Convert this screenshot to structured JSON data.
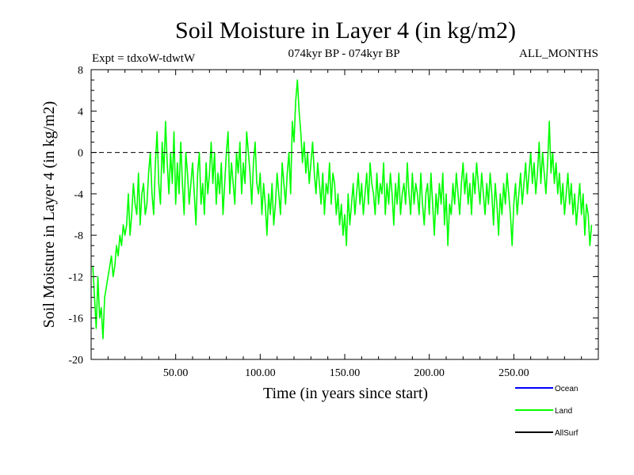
{
  "chart_data": {
    "type": "line",
    "title": "Soil Moisture in Layer 4 (in kg/m2)",
    "subtitle_left": "Expt = tdxoW-tdwtW",
    "subtitle_center": "074kyr BP - 074kyr BP",
    "subtitle_right": "ALL_MONTHS",
    "xlabel": "Time (in years since start)",
    "ylabel": "Soil Moisture in Layer 4 (in kg/m2)",
    "xlim": [
      0,
      300
    ],
    "ylim": [
      -20,
      8
    ],
    "x_ticks": [
      50,
      100,
      150,
      200,
      250
    ],
    "x_tick_labels": [
      "50.00",
      "100.00",
      "150.00",
      "200.00",
      "250.00"
    ],
    "y_ticks": [
      -20,
      -16,
      -12,
      -8,
      -4,
      0,
      4,
      8
    ],
    "y_tick_labels": [
      "-20",
      "-16",
      "-12",
      "-8",
      "-4",
      "0",
      "4",
      "8"
    ],
    "reference_line": {
      "y": 0,
      "style": "dashed"
    },
    "legend": [
      {
        "label": "Ocean",
        "color": "#0000ff"
      },
      {
        "label": "Land",
        "color": "#00ff00"
      },
      {
        "label": "AllSurf",
        "color": "#000000"
      }
    ],
    "series": [
      {
        "name": "Land",
        "color": "#00ff00",
        "x_start": 1,
        "x_step": 1,
        "values": [
          -11,
          -14,
          -17,
          -12,
          -16,
          -15,
          -18,
          -14,
          -13,
          -12,
          -11,
          -10,
          -12,
          -11,
          -9,
          -10,
          -8,
          -9,
          -7,
          -8,
          -7,
          -4,
          -8,
          -6,
          -3,
          -5,
          -6,
          -2,
          -7,
          -4,
          -3,
          -6,
          -5,
          -2,
          0,
          -4,
          -6,
          -1,
          2,
          -3,
          -5,
          1,
          -2,
          3,
          -1,
          -4,
          0,
          -3,
          2,
          -5,
          -1,
          -4,
          1,
          -3,
          -6,
          0,
          -2,
          -5,
          -3,
          -1,
          -4,
          -7,
          -2,
          0,
          -5,
          -3,
          -6,
          -1,
          -4,
          -2,
          1,
          -3,
          0,
          -5,
          -2,
          -4,
          -1,
          -6,
          -3,
          0,
          2,
          -4,
          -1,
          -3,
          -5,
          0,
          -2,
          1,
          -4,
          -1,
          -3,
          2,
          0,
          -2,
          -5,
          -1,
          1,
          -3,
          -4,
          -2,
          -6,
          -3,
          -5,
          -8,
          -4,
          -6,
          -3,
          -7,
          -5,
          -2,
          -4,
          -6,
          -1,
          -3,
          -5,
          -2,
          0,
          -4,
          3,
          1,
          5,
          7,
          4,
          2,
          -1,
          1,
          -2,
          0,
          -3,
          -1,
          1,
          -2,
          -4,
          -1,
          -3,
          -5,
          -2,
          -6,
          -3,
          -4,
          -1,
          -5,
          -2,
          -3,
          -6,
          -4,
          -7,
          -5,
          -8,
          -6,
          -9,
          -4,
          -7,
          -5,
          -3,
          -6,
          -4,
          -2,
          -5,
          -3,
          -6,
          -4,
          -2,
          -5,
          -1,
          -3,
          -4,
          -6,
          -2,
          -5,
          -3,
          -4,
          -1,
          -6,
          -3,
          -5,
          -2,
          -4,
          -7,
          -3,
          -5,
          -2,
          -6,
          -4,
          -3,
          -5,
          -1,
          -4,
          -6,
          -2,
          -5,
          -3,
          -4,
          -6,
          -2,
          -5,
          -7,
          -4,
          -3,
          -6,
          -2,
          -5,
          -8,
          -4,
          -6,
          -3,
          -5,
          -2,
          -7,
          -4,
          -9,
          -5,
          -6,
          -3,
          -5,
          -2,
          -4,
          -6,
          -3,
          -1,
          -4,
          -2,
          -5,
          -3,
          -6,
          -2,
          -4,
          -1,
          -3,
          -5,
          -2,
          -4,
          -6,
          -3,
          -5,
          -2,
          -4,
          -7,
          -3,
          -5,
          -8,
          -4,
          -6,
          -3,
          -5,
          -2,
          -4,
          -6,
          -9,
          -5,
          -3,
          -6,
          -4,
          -2,
          -5,
          -3,
          -1,
          -4,
          -2,
          0,
          -3,
          -1,
          -4,
          -2,
          1,
          -3,
          0,
          -2,
          -4,
          -1,
          3,
          -2,
          0,
          -3,
          -1,
          -4,
          -2,
          -5,
          -3,
          -6,
          -4,
          -2,
          -5,
          -3,
          -6,
          -4,
          -7,
          -5,
          -3,
          -6,
          -4,
          -8,
          -5,
          -6,
          -9,
          -7
        ]
      }
    ]
  }
}
